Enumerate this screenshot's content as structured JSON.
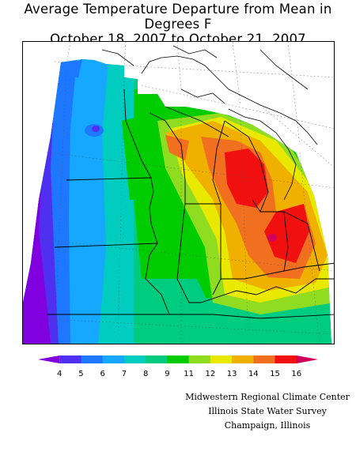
{
  "title": {
    "line1": "Average Temperature Departure from Mean in Degrees F",
    "line2": "October 18, 2007 to October 21, 2007"
  },
  "legend": {
    "ticks": [
      "4",
      "5",
      "6",
      "7",
      "8",
      "9",
      "11",
      "12",
      "13",
      "14",
      "15",
      "16"
    ],
    "colors": [
      "#8000e0",
      "#5030f0",
      "#1e78ff",
      "#16a8ff",
      "#00ccc0",
      "#00cc80",
      "#00cc00",
      "#90dc20",
      "#e8e800",
      "#f0b000",
      "#f07020",
      "#f01010",
      "#d0005a"
    ]
  },
  "credits": {
    "line1": "Midwestern Regional Climate Center",
    "line2": "Illinois State Water Survey",
    "line3": "Champaign, Illinois"
  }
}
